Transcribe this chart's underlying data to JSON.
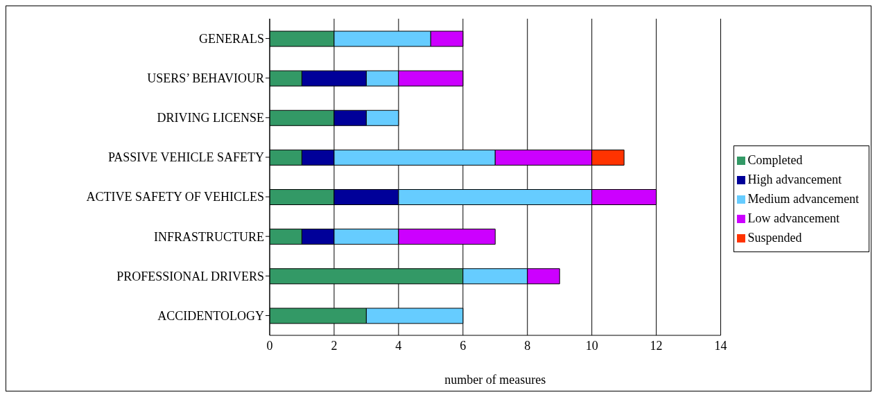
{
  "chart_data": {
    "type": "bar",
    "orientation": "horizontal",
    "stacked": true,
    "categories": [
      "GENERALS",
      "USERS’ BEHAVIOUR",
      "DRIVING LICENSE",
      "PASSIVE VEHICLE SAFETY",
      "ACTIVE SAFETY OF VEHICLES",
      "INFRASTRUCTURE",
      "PROFESSIONAL DRIVERS",
      "ACCIDENTOLOGY"
    ],
    "series": [
      {
        "name": "Completed",
        "color": "#339966",
        "values": [
          2,
          1,
          2,
          1,
          2,
          1,
          6,
          3
        ]
      },
      {
        "name": "High advancement",
        "color": "#000099",
        "values": [
          0,
          2,
          1,
          1,
          2,
          1,
          0,
          0
        ]
      },
      {
        "name": "Medium advancement",
        "color": "#66ccff",
        "values": [
          3,
          1,
          1,
          5,
          6,
          2,
          2,
          3
        ]
      },
      {
        "name": "Low advancement",
        "color": "#cc00ff",
        "values": [
          1,
          2,
          0,
          3,
          2,
          3,
          1,
          0
        ]
      },
      {
        "name": "Suspended",
        "color": "#ff3300",
        "values": [
          0,
          0,
          0,
          1,
          0,
          0,
          0,
          0
        ]
      }
    ],
    "xlim": [
      0,
      14
    ],
    "xticks": [
      0,
      2,
      4,
      6,
      8,
      10,
      12,
      14
    ],
    "xlabel": "number of measures",
    "grid": "x",
    "legend": "right"
  }
}
